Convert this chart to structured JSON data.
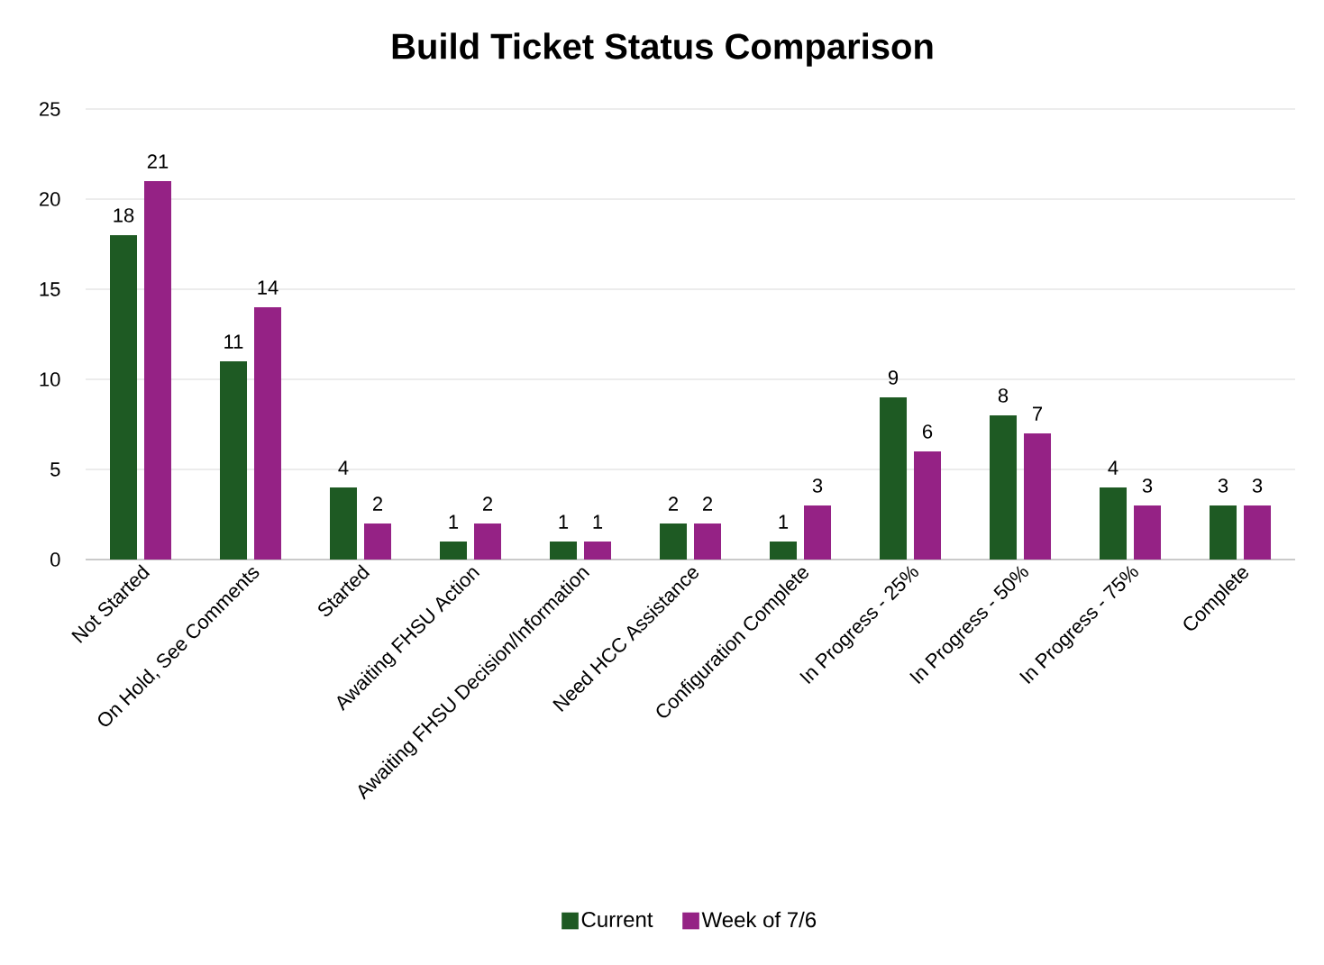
{
  "chart_data": {
    "type": "bar",
    "title": "Build Ticket Status Comparison",
    "categories": [
      "Not Started",
      "On Hold, See Comments",
      "Started",
      "Awaiting FHSU Action",
      "Awaiting FHSU Decision/Information",
      "Need HCC Assistance",
      "Configuration Complete",
      "In Progress - 25%",
      "In Progress - 50%",
      "In Progress - 75%",
      "Complete"
    ],
    "series": [
      {
        "name": "Current",
        "color": "#1e5a23",
        "values": [
          18,
          11,
          4,
          1,
          1,
          2,
          1,
          9,
          8,
          4,
          3
        ]
      },
      {
        "name": "Week of 7/6",
        "color": "#952285",
        "values": [
          21,
          14,
          2,
          2,
          1,
          2,
          3,
          6,
          7,
          3,
          3
        ]
      }
    ],
    "ylim": [
      0,
      25
    ],
    "yticks": [
      0,
      5,
      10,
      15,
      20,
      25
    ],
    "grid": "y",
    "legend": "bottom",
    "data_labels": true
  }
}
